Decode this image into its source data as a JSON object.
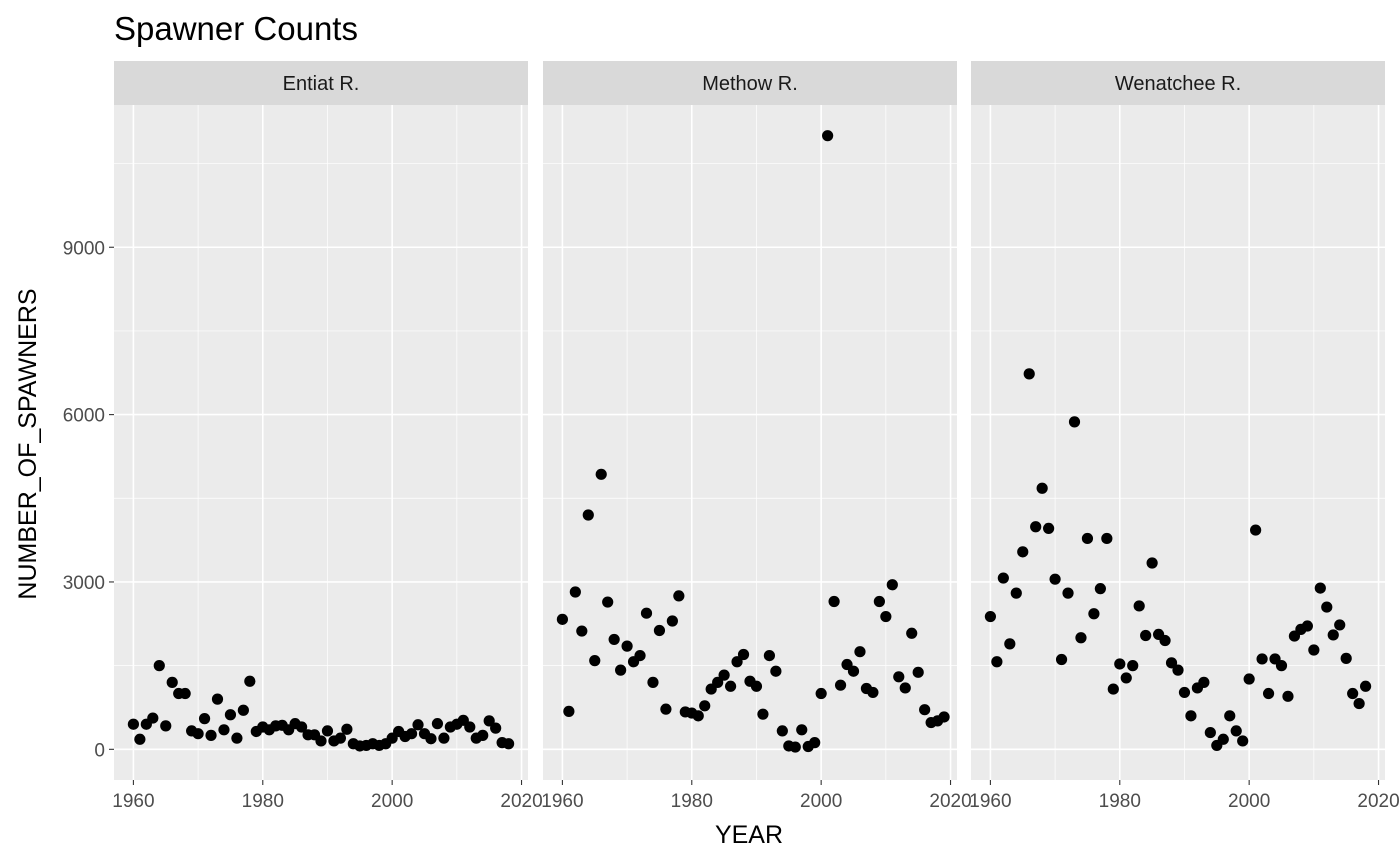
{
  "chart_data": {
    "type": "scatter",
    "title": "Spawner Counts",
    "xlabel": "YEAR",
    "ylabel": "NUMBER_OF_SPAWNERS",
    "xlim": [
      1957,
      2021
    ],
    "ylim": [
      -550,
      11550
    ],
    "xticks": [
      1960,
      1980,
      2000,
      2020
    ],
    "xtick_labels": [
      "1960",
      "1980",
      "2000",
      "2020"
    ],
    "yticks": [
      0,
      3000,
      6000,
      9000
    ],
    "ytick_labels": [
      "0",
      "3000",
      "6000",
      "9000"
    ],
    "grid": true,
    "legend": "none",
    "colors": {
      "panel_bg": "#ebebeb",
      "strip_bg": "#d9d9d9",
      "grid": "#ffffff",
      "point": "#000000"
    },
    "facets": [
      {
        "name": "Entiat R.",
        "points": [
          [
            1960,
            450
          ],
          [
            1961,
            180
          ],
          [
            1962,
            450
          ],
          [
            1963,
            560
          ],
          [
            1964,
            1500
          ],
          [
            1965,
            420
          ],
          [
            1966,
            1200
          ],
          [
            1967,
            1000
          ],
          [
            1968,
            1000
          ],
          [
            1969,
            330
          ],
          [
            1970,
            280
          ],
          [
            1971,
            550
          ],
          [
            1972,
            250
          ],
          [
            1973,
            900
          ],
          [
            1974,
            350
          ],
          [
            1975,
            620
          ],
          [
            1976,
            200
          ],
          [
            1977,
            700
          ],
          [
            1978,
            1220
          ],
          [
            1979,
            320
          ],
          [
            1980,
            400
          ],
          [
            1981,
            350
          ],
          [
            1982,
            420
          ],
          [
            1983,
            430
          ],
          [
            1984,
            350
          ],
          [
            1985,
            460
          ],
          [
            1986,
            400
          ],
          [
            1987,
            260
          ],
          [
            1988,
            260
          ],
          [
            1989,
            150
          ],
          [
            1990,
            330
          ],
          [
            1991,
            150
          ],
          [
            1992,
            200
          ],
          [
            1993,
            360
          ],
          [
            1994,
            100
          ],
          [
            1995,
            60
          ],
          [
            1996,
            70
          ],
          [
            1997,
            100
          ],
          [
            1998,
            70
          ],
          [
            1999,
            100
          ],
          [
            2000,
            200
          ],
          [
            2001,
            320
          ],
          [
            2002,
            230
          ],
          [
            2003,
            280
          ],
          [
            2004,
            440
          ],
          [
            2005,
            280
          ],
          [
            2006,
            190
          ],
          [
            2007,
            460
          ],
          [
            2008,
            200
          ],
          [
            2009,
            400
          ],
          [
            2010,
            450
          ],
          [
            2011,
            520
          ],
          [
            2012,
            400
          ],
          [
            2013,
            200
          ],
          [
            2014,
            250
          ],
          [
            2015,
            510
          ],
          [
            2016,
            380
          ],
          [
            2017,
            120
          ],
          [
            2018,
            100
          ]
        ]
      },
      {
        "name": "Methow R.",
        "points": [
          [
            1960,
            2330
          ],
          [
            1961,
            680
          ],
          [
            1962,
            2820
          ],
          [
            1963,
            2120
          ],
          [
            1964,
            4200
          ],
          [
            1965,
            1590
          ],
          [
            1966,
            4930
          ],
          [
            1967,
            2640
          ],
          [
            1968,
            1970
          ],
          [
            1969,
            1420
          ],
          [
            1970,
            1850
          ],
          [
            1971,
            1570
          ],
          [
            1972,
            1680
          ],
          [
            1973,
            2440
          ],
          [
            1974,
            1200
          ],
          [
            1975,
            2130
          ],
          [
            1976,
            720
          ],
          [
            1977,
            2300
          ],
          [
            1978,
            2750
          ],
          [
            1979,
            670
          ],
          [
            1980,
            650
          ],
          [
            1981,
            600
          ],
          [
            1982,
            780
          ],
          [
            1983,
            1080
          ],
          [
            1984,
            1200
          ],
          [
            1985,
            1330
          ],
          [
            1986,
            1130
          ],
          [
            1987,
            1570
          ],
          [
            1988,
            1700
          ],
          [
            1989,
            1220
          ],
          [
            1990,
            1130
          ],
          [
            1991,
            630
          ],
          [
            1992,
            1680
          ],
          [
            1993,
            1400
          ],
          [
            1994,
            330
          ],
          [
            1995,
            60
          ],
          [
            1996,
            40
          ],
          [
            1997,
            350
          ],
          [
            1998,
            50
          ],
          [
            1999,
            120
          ],
          [
            2000,
            1000
          ],
          [
            2001,
            11000
          ],
          [
            2002,
            2650
          ],
          [
            2003,
            1150
          ],
          [
            2004,
            1520
          ],
          [
            2005,
            1400
          ],
          [
            2006,
            1750
          ],
          [
            2007,
            1090
          ],
          [
            2008,
            1020
          ],
          [
            2009,
            2650
          ],
          [
            2010,
            2380
          ],
          [
            2011,
            2950
          ],
          [
            2012,
            1300
          ],
          [
            2013,
            1100
          ],
          [
            2014,
            2080
          ],
          [
            2015,
            1380
          ],
          [
            2016,
            710
          ],
          [
            2017,
            480
          ],
          [
            2018,
            510
          ],
          [
            2019,
            580
          ]
        ]
      },
      {
        "name": "Wenatchee R.",
        "points": [
          [
            1960,
            2380
          ],
          [
            1961,
            1570
          ],
          [
            1962,
            3070
          ],
          [
            1963,
            1890
          ],
          [
            1964,
            2800
          ],
          [
            1965,
            3540
          ],
          [
            1966,
            6730
          ],
          [
            1967,
            3990
          ],
          [
            1968,
            4680
          ],
          [
            1969,
            3960
          ],
          [
            1970,
            3050
          ],
          [
            1971,
            1610
          ],
          [
            1972,
            2800
          ],
          [
            1973,
            5870
          ],
          [
            1974,
            2000
          ],
          [
            1975,
            3780
          ],
          [
            1976,
            2430
          ],
          [
            1977,
            2880
          ],
          [
            1978,
            3780
          ],
          [
            1979,
            1080
          ],
          [
            1980,
            1530
          ],
          [
            1981,
            1280
          ],
          [
            1982,
            1500
          ],
          [
            1983,
            2570
          ],
          [
            1984,
            2040
          ],
          [
            1985,
            3340
          ],
          [
            1986,
            2060
          ],
          [
            1987,
            1950
          ],
          [
            1988,
            1550
          ],
          [
            1989,
            1420
          ],
          [
            1990,
            1020
          ],
          [
            1991,
            600
          ],
          [
            1992,
            1100
          ],
          [
            1993,
            1200
          ],
          [
            1994,
            300
          ],
          [
            1995,
            70
          ],
          [
            1996,
            180
          ],
          [
            1997,
            600
          ],
          [
            1998,
            330
          ],
          [
            1999,
            150
          ],
          [
            2000,
            1260
          ],
          [
            2001,
            3930
          ],
          [
            2002,
            1620
          ],
          [
            2003,
            1000
          ],
          [
            2004,
            1620
          ],
          [
            2005,
            1500
          ],
          [
            2006,
            950
          ],
          [
            2007,
            2030
          ],
          [
            2008,
            2150
          ],
          [
            2009,
            2210
          ],
          [
            2010,
            1780
          ],
          [
            2011,
            2890
          ],
          [
            2012,
            2550
          ],
          [
            2013,
            2050
          ],
          [
            2014,
            2230
          ],
          [
            2015,
            1630
          ],
          [
            2016,
            1000
          ],
          [
            2017,
            820
          ],
          [
            2018,
            1130
          ]
        ]
      }
    ]
  }
}
